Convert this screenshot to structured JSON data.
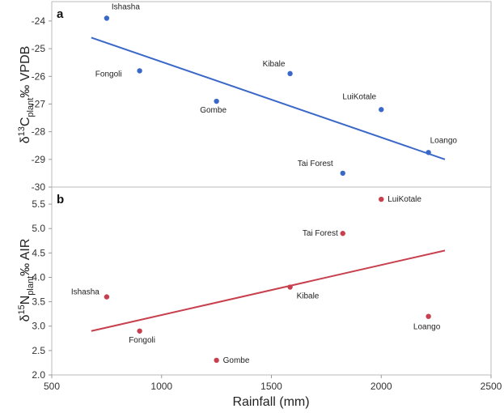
{
  "chart_data": [
    {
      "panel": "a",
      "type": "scatter",
      "ylabel": {
        "prefix": "δ",
        "sup": "13",
        "main": "C",
        "sub": "plant",
        "suffix": "‰ VPDB"
      },
      "xlabel": "Rainfall (mm)",
      "xlim": [
        500,
        2500
      ],
      "ylim": [
        -30,
        -23.3
      ],
      "yticks": [
        -24,
        -25,
        -26,
        -27,
        -28,
        -29,
        -30
      ],
      "ytick_labels": [
        "-24",
        "-25",
        "-26",
        "-27",
        "-28",
        "-29",
        "-30"
      ],
      "grid": false,
      "color": "#3a68c8",
      "line_color": "#3a68c8",
      "points": [
        {
          "label": "Ishasha",
          "x": 750,
          "y": -23.9
        },
        {
          "label": "Fongoli",
          "x": 900,
          "y": -25.8
        },
        {
          "label": "Gombe",
          "x": 1250,
          "y": -26.9
        },
        {
          "label": "Kibale",
          "x": 1585,
          "y": -25.9
        },
        {
          "label": "LuiKotale",
          "x": 2000,
          "y": -27.2
        },
        {
          "label": "Tai Forest",
          "x": 1825,
          "y": -29.5
        },
        {
          "label": "Loango",
          "x": 2215,
          "y": -28.75
        }
      ],
      "fit": {
        "x": [
          680,
          2290
        ],
        "y": [
          -24.6,
          -29.0
        ]
      }
    },
    {
      "panel": "b",
      "type": "scatter",
      "ylabel": {
        "prefix": "δ",
        "sup": "15",
        "main": "N",
        "sub": "plant",
        "suffix": "‰ AIR"
      },
      "xlabel": "Rainfall (mm)",
      "xlim": [
        500,
        2500
      ],
      "ylim": [
        2.0,
        5.85
      ],
      "yticks": [
        2.0,
        2.5,
        3.0,
        3.5,
        4.0,
        4.5,
        5.0,
        5.5
      ],
      "ytick_labels": [
        "2.0",
        "2.5",
        "3.0",
        "3.5",
        "4.0",
        "4.5",
        "5.0",
        "5.5"
      ],
      "xticks": [
        500,
        1000,
        1500,
        2000,
        2500
      ],
      "xtick_labels": [
        "500",
        "1000",
        "1500",
        "2000",
        "2500"
      ],
      "grid": false,
      "color": "#c8404e",
      "line_color": "#c8404e",
      "points": [
        {
          "label": "LuiKotale",
          "x": 2000,
          "y": 5.6
        },
        {
          "label": "Tai Forest",
          "x": 1825,
          "y": 4.9
        },
        {
          "label": "Kibale",
          "x": 1585,
          "y": 3.8
        },
        {
          "label": "Ishasha",
          "x": 750,
          "y": 3.6
        },
        {
          "label": "Fongoli",
          "x": 900,
          "y": 2.9
        },
        {
          "label": "Gombe",
          "x": 1250,
          "y": 2.3
        },
        {
          "label": "Loango",
          "x": 2215,
          "y": 3.2
        }
      ],
      "fit": {
        "x": [
          680,
          2290
        ],
        "y": [
          2.9,
          4.55
        ]
      }
    }
  ]
}
